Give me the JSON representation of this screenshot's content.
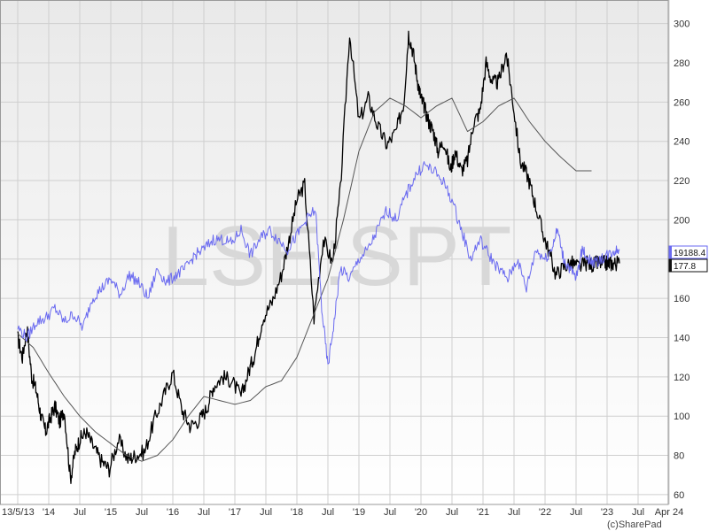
{
  "chart_data": {
    "type": "line",
    "watermark": "LSE:SPT",
    "credit": "(c)SharePad",
    "x_ticks": [
      "13/5/13",
      "'14",
      "Jul",
      "'15",
      "Jul",
      "'16",
      "Jul",
      "'17",
      "Jul",
      "'18",
      "Jul",
      "'19",
      "Jul",
      "'20",
      "Jul",
      "'21",
      "Jul",
      "'22",
      "Jul",
      "'23",
      "Jul",
      "Apr 24"
    ],
    "y_ticks": [
      60,
      80,
      100,
      120,
      140,
      160,
      180,
      200,
      220,
      240,
      260,
      280,
      300
    ],
    "ylim": [
      55,
      312
    ],
    "grid": true,
    "last_value_tags": [
      {
        "text": "19188.4",
        "color": "#6a6af0"
      },
      {
        "text": "177.8",
        "color": "#111111"
      }
    ],
    "series": [
      {
        "role": "price",
        "color": "#000000",
        "x": [
          0,
          0.15,
          0.3,
          0.45,
          0.6,
          0.75,
          0.9,
          1.05,
          1.2,
          1.35,
          1.5,
          1.7,
          1.85,
          2.0,
          2.2,
          2.45,
          2.7,
          2.95,
          3.25,
          3.55,
          3.8,
          4.1,
          4.4,
          4.7,
          5.0,
          5.3,
          5.55,
          5.85,
          6.1,
          6.3,
          6.6,
          6.9,
          7.2,
          7.45,
          7.65,
          7.9,
          8.2,
          8.5,
          8.75,
          9.0,
          9.25,
          9.55,
          9.85,
          10.15,
          10.4,
          10.7,
          11.0,
          11.3,
          11.6,
          11.9,
          12.2,
          12.45,
          12.6,
          12.75,
          12.9,
          13.0,
          13.1,
          13.25,
          13.4,
          13.55,
          13.75,
          13.95,
          14.1,
          14.3,
          14.5,
          14.7,
          14.9,
          15.1,
          15.3,
          15.5,
          15.75,
          15.95,
          16.2,
          16.45,
          16.65,
          16.9,
          17.1,
          17.35,
          17.6,
          17.85,
          18.1,
          18.35,
          18.55,
          18.7,
          18.85,
          19.0,
          19.1,
          19.25,
          19.4
        ],
        "y": [
          140,
          130,
          145,
          120,
          113,
          100,
          92,
          99,
          105,
          97,
          103,
          68,
          82,
          88,
          92,
          84,
          77,
          73,
          88,
          78,
          80,
          82,
          98,
          110,
          122,
          103,
          95,
          98,
          104,
          115,
          120,
          118,
          110,
          123,
          132,
          150,
          158,
          172,
          190,
          210,
          218,
          150,
          190,
          178,
          215,
          295,
          250,
          262,
          248,
          238,
          245,
          260,
          295,
          285,
          270,
          262,
          258,
          250,
          245,
          235,
          240,
          225,
          235,
          225,
          230,
          250,
          255,
          280,
          270,
          270,
          285,
          262,
          230,
          222,
          210,
          195,
          185,
          172,
          176,
          178,
          176,
          178,
          177,
          178,
          178,
          177.8,
          177.8,
          177.8,
          177.8
        ]
      },
      {
        "role": "moving-average",
        "color": "#555555",
        "x": [
          0,
          0.5,
          1.0,
          1.5,
          2.0,
          2.5,
          3.0,
          3.5,
          4.0,
          4.5,
          5.0,
          5.5,
          6.0,
          6.5,
          7.0,
          7.5,
          8.0,
          8.5,
          9.0,
          9.5,
          10.0,
          10.5,
          11.0,
          11.5,
          12.0,
          12.5,
          13.0,
          13.5,
          14.0,
          14.5,
          15.0,
          15.5,
          16.0,
          16.5,
          17.0,
          17.5,
          18.0,
          18.5
        ],
        "y": [
          142,
          135,
          122,
          110,
          100,
          92,
          86,
          80,
          77,
          80,
          88,
          100,
          110,
          108,
          106,
          108,
          115,
          118,
          130,
          150,
          170,
          200,
          235,
          255,
          262,
          258,
          252,
          258,
          262,
          245,
          250,
          258,
          262,
          250,
          240,
          232,
          225,
          225
        ]
      },
      {
        "role": "index",
        "color": "#6a6af0",
        "x": [
          0,
          0.3,
          0.6,
          0.9,
          1.2,
          1.5,
          1.8,
          2.1,
          2.4,
          2.7,
          3.0,
          3.3,
          3.6,
          3.9,
          4.2,
          4.5,
          4.8,
          5.1,
          5.4,
          5.7,
          6.0,
          6.3,
          6.6,
          6.9,
          7.2,
          7.5,
          7.8,
          8.1,
          8.4,
          8.7,
          9.0,
          9.3,
          9.6,
          9.8,
          10.0,
          10.2,
          10.4,
          10.7,
          11.0,
          11.3,
          11.6,
          11.9,
          12.2,
          12.5,
          12.8,
          13.1,
          13.4,
          13.7,
          14.0,
          14.3,
          14.6,
          14.9,
          15.2,
          15.5,
          15.8,
          16.1,
          16.4,
          16.7,
          17.0,
          17.2,
          17.4,
          17.6,
          17.8,
          18.0,
          18.2,
          18.4,
          18.6,
          18.8,
          19.0,
          19.2,
          19.4
        ],
        "y": [
          145,
          140,
          148,
          150,
          155,
          148,
          152,
          145,
          160,
          165,
          170,
          162,
          172,
          168,
          160,
          175,
          168,
          172,
          175,
          182,
          185,
          190,
          190,
          188,
          195,
          182,
          190,
          195,
          190,
          185,
          192,
          200,
          205,
          155,
          125,
          148,
          175,
          170,
          180,
          185,
          195,
          205,
          200,
          212,
          222,
          228,
          225,
          220,
          210,
          195,
          180,
          190,
          182,
          175,
          170,
          180,
          165,
          185,
          180,
          185,
          195,
          180,
          175,
          170,
          185,
          180,
          178,
          180,
          182,
          184,
          185
        ]
      }
    ]
  }
}
